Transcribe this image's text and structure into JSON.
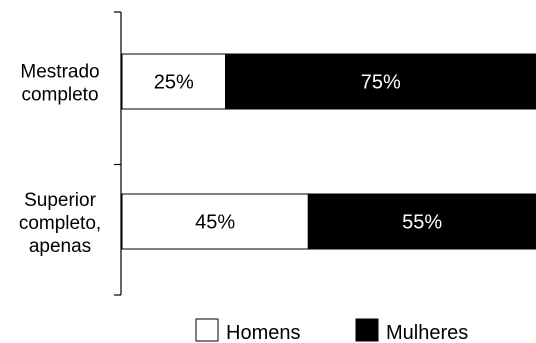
{
  "chart_data": {
    "type": "bar",
    "orientation": "horizontal",
    "stacked": true,
    "percent_stacked": true,
    "title": "",
    "xlabel": "",
    "ylabel": "",
    "xlim": [
      0,
      100
    ],
    "grid": false,
    "legend_position": "bottom",
    "categories": [
      [
        "Mestrado",
        "completo"
      ],
      [
        "Superior",
        "completo,",
        "apenas"
      ]
    ],
    "series": [
      {
        "name": "Homens",
        "color": "#ffffff",
        "values": [
          25,
          45
        ],
        "labels": [
          "25%",
          "45%"
        ]
      },
      {
        "name": "Mulheres",
        "color": "#000000",
        "values": [
          75,
          55
        ],
        "labels": [
          "75%",
          "55%"
        ]
      }
    ]
  }
}
